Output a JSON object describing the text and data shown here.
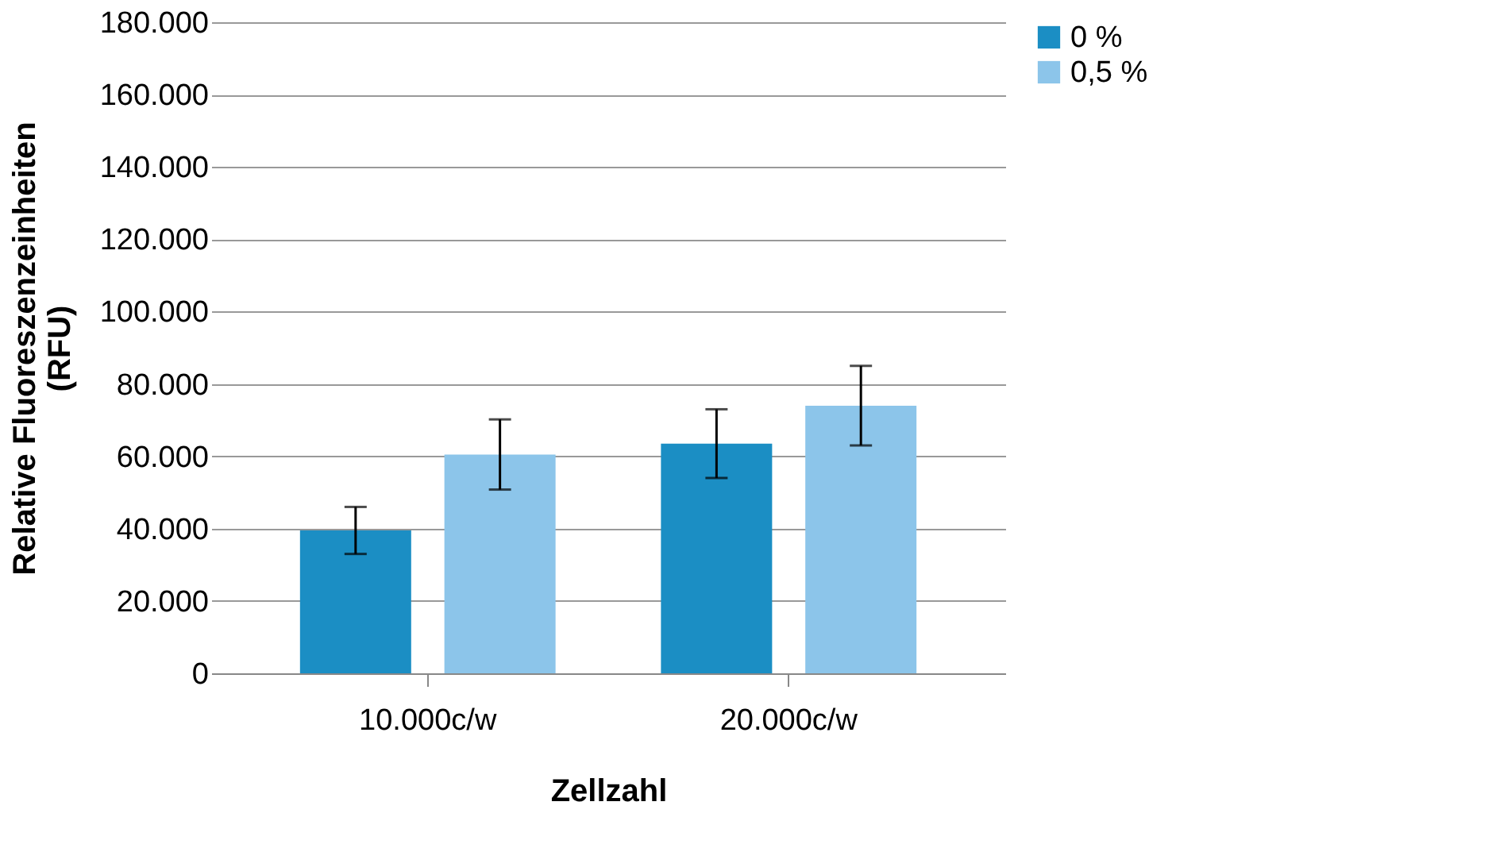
{
  "chart_data": {
    "type": "bar",
    "xlabel": "Zellzahl",
    "ylabel": "Relative Fluoreszenzeinheiten\n(RFU)",
    "categories": [
      "10.000c/w",
      "20.000c/w"
    ],
    "series": [
      {
        "name": "0 %",
        "color": "#1b8ec4",
        "values": [
          39500,
          63500
        ],
        "errors": [
          6500,
          9500
        ]
      },
      {
        "name": "0,5 %",
        "color": "#8cc5ea",
        "values": [
          60500,
          74000
        ],
        "errors": [
          9700,
          11000
        ]
      }
    ],
    "ylim": [
      0,
      180000
    ],
    "yticks": [
      0,
      {
        "value": 20000,
        "label": "20.000"
      },
      {
        "value": 40000,
        "label": "40.000"
      },
      {
        "value": 60000,
        "label": "60.000"
      },
      {
        "value": 80000,
        "label": "80.000"
      },
      {
        "value": 100000,
        "label": "100.000"
      },
      {
        "value": 120000,
        "label": "120.000"
      },
      {
        "value": 140000,
        "label": "140.000"
      },
      {
        "value": 160000,
        "label": "160.000"
      },
      {
        "value": 180000,
        "label": "180.000"
      }
    ],
    "grid": "y",
    "legend": "right"
  }
}
